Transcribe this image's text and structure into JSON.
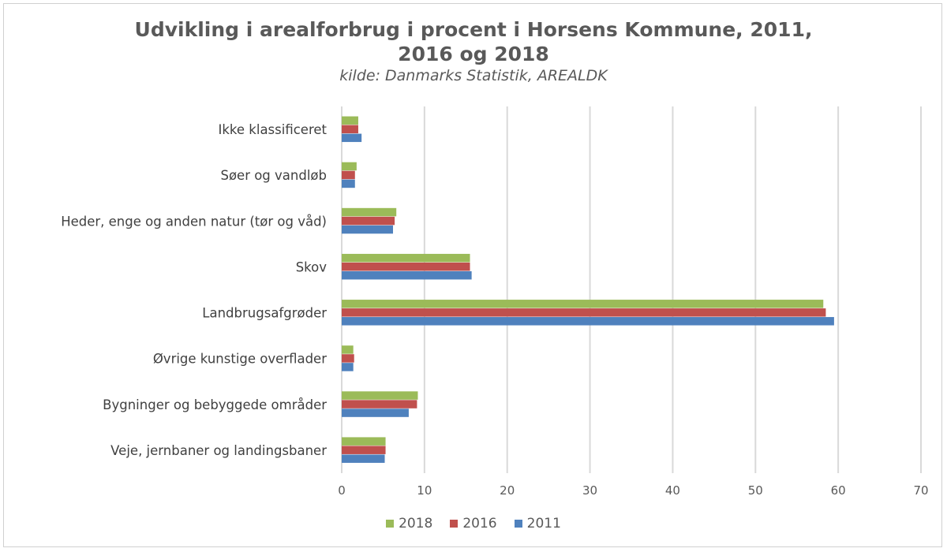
{
  "chart_data": {
    "type": "bar",
    "orientation": "horizontal",
    "title": "Udvikling i arealforbrug i procent i Horsens Kommune, 2011, 2016 og 2018",
    "title_line1": "Udvikling i arealforbrug i procent i Horsens Kommune, 2011,",
    "title_line2": "2016 og 2018",
    "subtitle": "kilde: Danmarks Statistik, AREALDK",
    "categories": [
      "Ikke klassificeret",
      "Søer og vandløb",
      "Heder, enge og anden natur (tør og våd)",
      "Skov",
      "Landbrugsafgrøder",
      "Øvrige kunstige overflader",
      "Bygninger og bebyggede områder",
      "Veje, jernbaner og landingsbaner"
    ],
    "series": [
      {
        "name": "2018",
        "color": "#9bbb59",
        "values": [
          2.0,
          1.8,
          6.6,
          15.5,
          58.2,
          1.4,
          9.2,
          5.3
        ]
      },
      {
        "name": "2016",
        "color": "#c0504d",
        "values": [
          2.0,
          1.6,
          6.4,
          15.5,
          58.5,
          1.5,
          9.1,
          5.3
        ]
      },
      {
        "name": "2011",
        "color": "#4f81bd",
        "values": [
          2.4,
          1.6,
          6.2,
          15.7,
          59.5,
          1.4,
          8.1,
          5.2
        ]
      }
    ],
    "xlim": [
      0,
      70
    ],
    "xticks": [
      "0",
      "10",
      "20",
      "30",
      "40",
      "50",
      "60",
      "70"
    ],
    "grid": true,
    "legend_position": "bottom",
    "legend": [
      "2018",
      "2016",
      "2011"
    ]
  }
}
